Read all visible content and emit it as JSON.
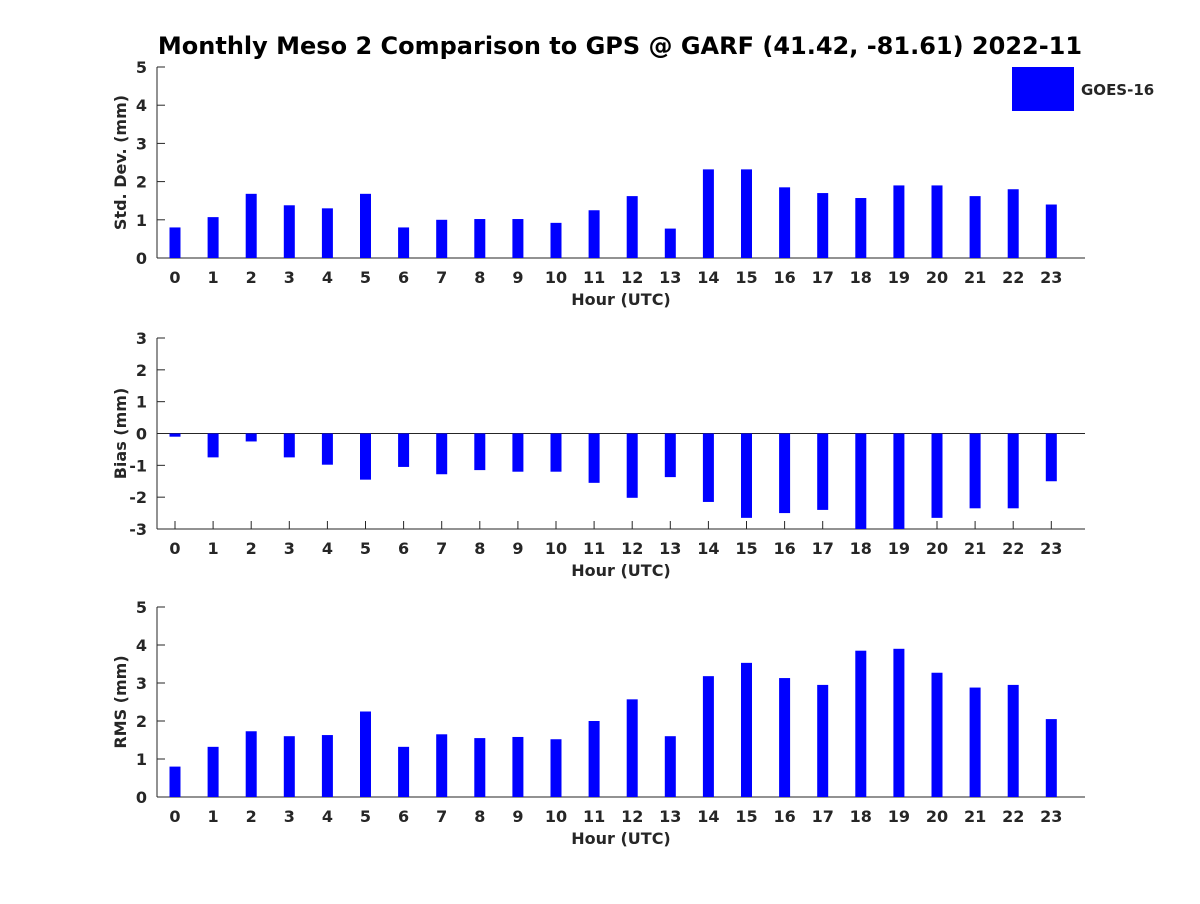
{
  "title": "Monthly Meso 2 Comparison to GPS @ GARF (41.42, -81.61) 2022-11",
  "legend": {
    "label": "GOES-16",
    "color": "#0000ff",
    "placement": "top-right"
  },
  "chart_data": [
    {
      "type": "bar",
      "xlabel": "Hour (UTC)",
      "ylabel": "Std. Dev. (mm)",
      "ylim": [
        0,
        5
      ],
      "yticks": [
        0,
        1,
        2,
        3,
        4,
        5
      ],
      "categories": [
        "0",
        "1",
        "2",
        "3",
        "4",
        "5",
        "6",
        "7",
        "8",
        "9",
        "10",
        "11",
        "12",
        "13",
        "14",
        "15",
        "16",
        "17",
        "18",
        "19",
        "20",
        "21",
        "22",
        "23"
      ],
      "series": [
        {
          "name": "GOES-16",
          "color": "#0000ff",
          "values": [
            0.8,
            1.07,
            1.68,
            1.38,
            1.3,
            1.68,
            0.8,
            1.0,
            1.02,
            1.02,
            0.92,
            1.25,
            1.62,
            0.77,
            2.32,
            2.32,
            1.85,
            1.7,
            1.57,
            1.9,
            1.9,
            1.62,
            1.8,
            1.4
          ]
        }
      ],
      "grid": false
    },
    {
      "type": "bar",
      "xlabel": "Hour (UTC)",
      "ylabel": "Bias (mm)",
      "ylim": [
        -3,
        3
      ],
      "yticks": [
        -3,
        -2,
        -1,
        0,
        1,
        2,
        3
      ],
      "categories": [
        "0",
        "1",
        "2",
        "3",
        "4",
        "5",
        "6",
        "7",
        "8",
        "9",
        "10",
        "11",
        "12",
        "13",
        "14",
        "15",
        "16",
        "17",
        "18",
        "19",
        "20",
        "21",
        "22",
        "23"
      ],
      "series": [
        {
          "name": "GOES-16",
          "color": "#0000ff",
          "values": [
            -0.1,
            -0.75,
            -0.25,
            -0.75,
            -0.98,
            -1.45,
            -1.05,
            -1.28,
            -1.15,
            -1.2,
            -1.2,
            -1.55,
            -2.02,
            -1.37,
            -2.15,
            -2.65,
            -2.5,
            -2.4,
            -3.0,
            -3.0,
            -2.65,
            -2.35,
            -2.35,
            -1.5
          ]
        }
      ],
      "grid": false
    },
    {
      "type": "bar",
      "xlabel": "Hour (UTC)",
      "ylabel": "RMS (mm)",
      "ylim": [
        0,
        5
      ],
      "yticks": [
        0,
        1,
        2,
        3,
        4,
        5
      ],
      "categories": [
        "0",
        "1",
        "2",
        "3",
        "4",
        "5",
        "6",
        "7",
        "8",
        "9",
        "10",
        "11",
        "12",
        "13",
        "14",
        "15",
        "16",
        "17",
        "18",
        "19",
        "20",
        "21",
        "22",
        "23"
      ],
      "series": [
        {
          "name": "GOES-16",
          "color": "#0000ff",
          "values": [
            0.8,
            1.32,
            1.73,
            1.6,
            1.63,
            2.25,
            1.32,
            1.65,
            1.55,
            1.58,
            1.52,
            2.0,
            2.57,
            1.6,
            3.18,
            3.53,
            3.13,
            2.95,
            3.85,
            3.9,
            3.27,
            2.88,
            2.95,
            2.05
          ]
        }
      ],
      "grid": false
    }
  ]
}
